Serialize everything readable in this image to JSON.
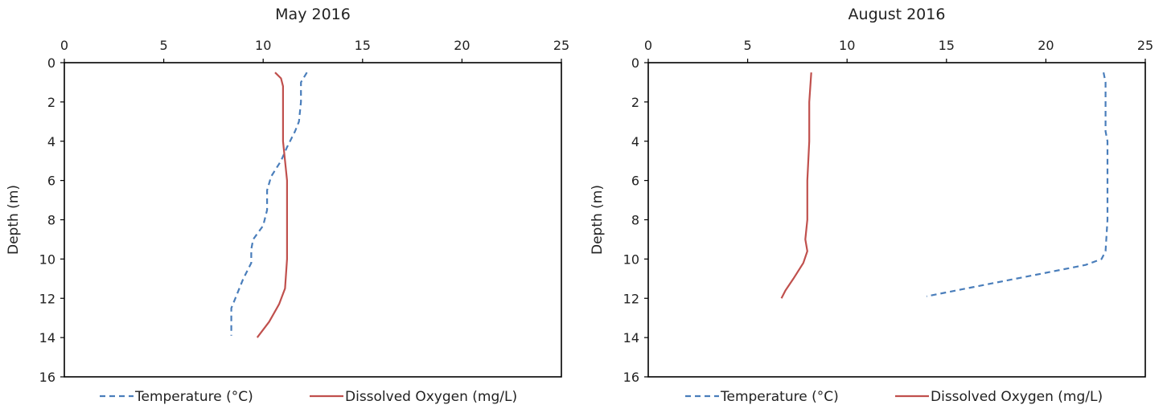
{
  "chart_data": [
    {
      "type": "line",
      "title": "May 2016",
      "xlabel": "",
      "ylabel": "Depth (m)",
      "xlim": [
        0,
        25
      ],
      "ylim": [
        0,
        16
      ],
      "y_inverted": true,
      "x_axis_position": "top",
      "x_ticks": [
        "0",
        "5",
        "10",
        "15",
        "20",
        "25"
      ],
      "y_ticks": [
        "0",
        "2",
        "4",
        "6",
        "8",
        "10",
        "12",
        "14",
        "16"
      ],
      "grid": false,
      "legend_position": "bottom",
      "series": [
        {
          "name": "Temperature (°C)",
          "color": "#4a7ebb",
          "dash": "dashed",
          "points": [
            [
              12.2,
              0.5
            ],
            [
              11.9,
              1.0
            ],
            [
              11.9,
              2.0
            ],
            [
              11.8,
              3.0
            ],
            [
              11.6,
              3.5
            ],
            [
              11.2,
              4.3
            ],
            [
              10.9,
              5.0
            ],
            [
              10.4,
              5.8
            ],
            [
              10.2,
              6.5
            ],
            [
              10.2,
              7.5
            ],
            [
              10.0,
              8.3
            ],
            [
              9.5,
              9.0
            ],
            [
              9.4,
              9.5
            ],
            [
              9.4,
              10.2
            ],
            [
              9.0,
              11.0
            ],
            [
              8.6,
              12.0
            ],
            [
              8.4,
              12.5
            ],
            [
              8.4,
              13.9
            ]
          ]
        },
        {
          "name": "Dissolved Oxygen (mg/L)",
          "color": "#c0504d",
          "dash": "solid",
          "points": [
            [
              10.6,
              0.5
            ],
            [
              10.9,
              0.8
            ],
            [
              11.0,
              1.2
            ],
            [
              11.0,
              2.0
            ],
            [
              11.0,
              3.0
            ],
            [
              11.0,
              4.0
            ],
            [
              11.1,
              5.0
            ],
            [
              11.2,
              6.0
            ],
            [
              11.2,
              8.0
            ],
            [
              11.2,
              10.0
            ],
            [
              11.1,
              11.5
            ],
            [
              10.8,
              12.3
            ],
            [
              10.3,
              13.2
            ],
            [
              9.7,
              14.0
            ]
          ]
        }
      ]
    },
    {
      "type": "line",
      "title": "August 2016",
      "xlabel": "",
      "ylabel": "Depth (m)",
      "xlim": [
        0,
        25
      ],
      "ylim": [
        0,
        16
      ],
      "y_inverted": true,
      "x_axis_position": "top",
      "x_ticks": [
        "0",
        "5",
        "10",
        "15",
        "20",
        "25"
      ],
      "y_ticks": [
        "0",
        "2",
        "4",
        "6",
        "8",
        "10",
        "12",
        "14",
        "16"
      ],
      "grid": false,
      "legend_position": "bottom",
      "series": [
        {
          "name": "Temperature (°C)",
          "color": "#4a7ebb",
          "dash": "dashed",
          "points": [
            [
              22.9,
              0.5
            ],
            [
              23.0,
              1.0
            ],
            [
              23.0,
              3.5
            ],
            [
              23.1,
              4.0
            ],
            [
              23.1,
              6.0
            ],
            [
              23.1,
              8.0
            ],
            [
              23.0,
              9.6
            ],
            [
              22.8,
              10.0
            ],
            [
              22.0,
              10.3
            ],
            [
              20.0,
              10.7
            ],
            [
              17.0,
              11.3
            ],
            [
              14.0,
              11.9
            ]
          ]
        },
        {
          "name": "Dissolved Oxygen (mg/L)",
          "color": "#c0504d",
          "dash": "solid",
          "points": [
            [
              8.2,
              0.5
            ],
            [
              8.1,
              2.0
            ],
            [
              8.1,
              4.0
            ],
            [
              8.0,
              6.0
            ],
            [
              8.0,
              8.0
            ],
            [
              7.9,
              9.0
            ],
            [
              8.0,
              9.6
            ],
            [
              7.8,
              10.2
            ],
            [
              7.3,
              11.0
            ],
            [
              6.9,
              11.6
            ],
            [
              6.7,
              12.0
            ]
          ]
        }
      ]
    }
  ]
}
